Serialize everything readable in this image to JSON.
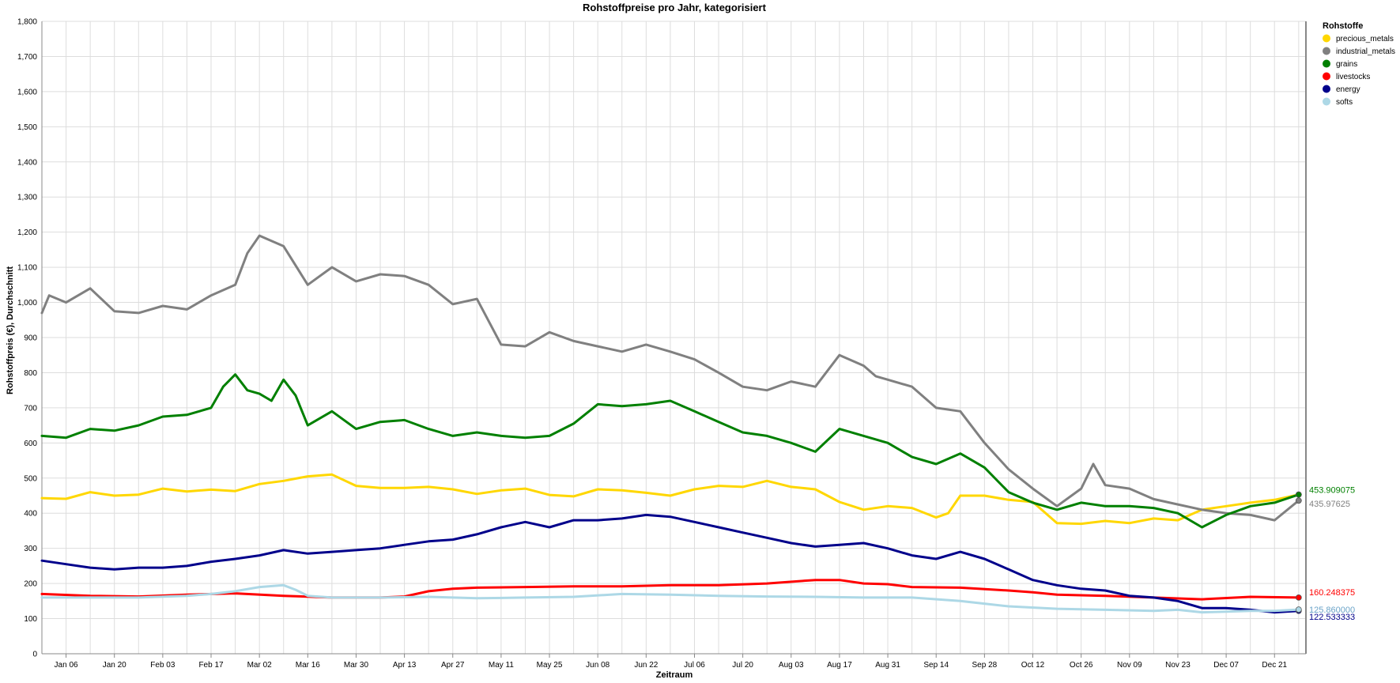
{
  "chart_data": {
    "type": "line",
    "title": "Rohstoffpreise pro Jahr, kategorisiert",
    "xlabel": "Zeitraum",
    "ylabel": "Rohstoffpreis (€), Durchschnitt",
    "ylim": [
      0,
      1800
    ],
    "yticks": [
      0,
      100,
      200,
      300,
      400,
      500,
      600,
      700,
      800,
      900,
      1000,
      1100,
      1200,
      1300,
      1400,
      1500,
      1600,
      1700,
      1800
    ],
    "ytick_labels": [
      "0",
      "100",
      "200",
      "300",
      "400",
      "500",
      "600",
      "700",
      "800",
      "900",
      "1,000",
      "1,100",
      "1,200",
      "1,300",
      "1,400",
      "1,500",
      "1,600",
      "1,700",
      "1,800"
    ],
    "xlim": [
      0,
      52.3
    ],
    "xticks": [
      1,
      3,
      5,
      7,
      9,
      11,
      13,
      15,
      17,
      19,
      21,
      23,
      25,
      27,
      29,
      31,
      33,
      35,
      37,
      39,
      41,
      43,
      45,
      47,
      49,
      51
    ],
    "xtick_labels": [
      "Jan 06",
      "Jan 20",
      "Feb 03",
      "Feb 17",
      "Mar 02",
      "Mar 16",
      "Mar 30",
      "Apr 13",
      "Apr 27",
      "May 11",
      "May 25",
      "Jun 08",
      "Jun 22",
      "Jul 06",
      "Jul 20",
      "Aug 03",
      "Aug 17",
      "Aug 31",
      "Sep 14",
      "Sep 28",
      "Oct 12",
      "Oct 26",
      "Nov 09",
      "Nov 23",
      "Dec 07",
      "Dec 21"
    ],
    "grid": true,
    "legend": {
      "title": "Rohstoffe",
      "placement": "right"
    },
    "colors": {
      "precious_metals": "#ffd700",
      "industrial_metals": "#808080",
      "grains": "#008000",
      "livestocks": "#ff0000",
      "energy": "#00008b",
      "softs": "#add8e6"
    },
    "series": [
      {
        "name": "precious_metals",
        "x": [
          0,
          0.5,
          1,
          2,
          3,
          4,
          5,
          6,
          7,
          8,
          9,
          10,
          11,
          12,
          13,
          14,
          15,
          16,
          17,
          18,
          19,
          20,
          21,
          22,
          23,
          24,
          25,
          26,
          27,
          28,
          29,
          30,
          31,
          32,
          33,
          34,
          35,
          36,
          37,
          37.5,
          38,
          39,
          40,
          41,
          42,
          43,
          44,
          45,
          46,
          47,
          48,
          49,
          50,
          51,
          52
        ],
        "values": [
          443,
          442,
          441,
          460,
          450,
          453,
          470,
          462,
          467,
          463,
          483,
          492,
          505,
          510,
          478,
          472,
          472,
          475,
          468,
          455,
          465,
          470,
          452,
          448,
          468,
          465,
          458,
          450,
          468,
          478,
          475,
          492,
          475,
          468,
          432,
          410,
          420,
          415,
          388,
          400,
          450,
          450,
          438,
          432,
          372,
          370,
          378,
          372,
          385,
          380,
          410,
          420,
          430,
          438,
          453
        ]
      },
      {
        "name": "industrial_metals",
        "x": [
          0,
          0.3,
          1,
          2,
          3,
          4,
          5,
          6,
          7,
          8,
          8.5,
          9,
          9.5,
          10,
          11,
          12,
          13,
          14,
          15,
          16,
          17,
          18,
          19,
          20,
          21,
          22,
          23,
          24,
          25,
          26,
          27,
          28,
          29,
          30,
          31,
          32,
          33,
          34,
          34.5,
          35,
          36,
          37,
          38,
          39,
          40,
          41,
          42,
          43,
          43.5,
          44,
          45,
          46,
          47,
          48,
          49,
          50,
          51,
          52
        ],
        "values": [
          970,
          1020,
          1000,
          1040,
          975,
          970,
          990,
          980,
          1020,
          1050,
          1140,
          1190,
          1175,
          1160,
          1050,
          1100,
          1060,
          1080,
          1075,
          1050,
          995,
          1010,
          880,
          875,
          915,
          890,
          875,
          860,
          880,
          860,
          838,
          800,
          760,
          750,
          775,
          760,
          850,
          820,
          790,
          780,
          760,
          700,
          690,
          600,
          525,
          470,
          420,
          470,
          540,
          480,
          470,
          440,
          425,
          410,
          400,
          395,
          380,
          436
        ]
      },
      {
        "name": "grains",
        "x": [
          0,
          1,
          2,
          3,
          4,
          5,
          6,
          7,
          7.5,
          8,
          8.5,
          9,
          9.5,
          10,
          10.5,
          11,
          12,
          13,
          14,
          15,
          16,
          17,
          18,
          19,
          20,
          21,
          22,
          23,
          24,
          25,
          26,
          27,
          28,
          29,
          30,
          31,
          32,
          33,
          34,
          35,
          36,
          37,
          38,
          39,
          40,
          41,
          42,
          43,
          44,
          45,
          46,
          47,
          48,
          49,
          50,
          51,
          52
        ],
        "values": [
          620,
          615,
          640,
          635,
          650,
          675,
          680,
          700,
          760,
          795,
          750,
          740,
          720,
          780,
          735,
          650,
          690,
          640,
          660,
          665,
          640,
          620,
          630,
          620,
          615,
          620,
          655,
          710,
          705,
          710,
          720,
          690,
          660,
          630,
          620,
          600,
          575,
          640,
          620,
          600,
          560,
          540,
          570,
          530,
          460,
          430,
          410,
          430,
          420,
          420,
          415,
          400,
          360,
          395,
          420,
          430,
          453
        ]
      },
      {
        "name": "livestocks",
        "x": [
          0,
          2,
          4,
          6,
          8,
          10,
          12,
          14,
          15,
          16,
          17,
          18,
          20,
          22,
          24,
          26,
          28,
          30,
          32,
          33,
          34,
          35,
          36,
          38,
          40,
          41,
          42,
          44,
          46,
          48,
          50,
          52
        ],
        "values": [
          170,
          165,
          163,
          168,
          172,
          165,
          160,
          160,
          163,
          178,
          185,
          188,
          190,
          192,
          192,
          195,
          195,
          200,
          210,
          210,
          200,
          198,
          190,
          188,
          180,
          175,
          168,
          165,
          160,
          155,
          162,
          160
        ]
      },
      {
        "name": "energy",
        "x": [
          0,
          1,
          2,
          3,
          4,
          5,
          6,
          7,
          8,
          9,
          10,
          11,
          12,
          13,
          14,
          15,
          16,
          17,
          18,
          19,
          20,
          21,
          22,
          23,
          24,
          25,
          26,
          27,
          28,
          29,
          30,
          31,
          32,
          33,
          34,
          35,
          36,
          37,
          38,
          39,
          40,
          41,
          42,
          43,
          44,
          45,
          46,
          47,
          48,
          49,
          50,
          51,
          52
        ],
        "values": [
          265,
          255,
          245,
          240,
          245,
          245,
          250,
          262,
          270,
          280,
          295,
          285,
          290,
          295,
          300,
          310,
          320,
          325,
          340,
          360,
          375,
          360,
          380,
          380,
          385,
          395,
          390,
          375,
          360,
          345,
          330,
          315,
          305,
          310,
          315,
          300,
          280,
          270,
          290,
          270,
          240,
          210,
          195,
          185,
          180,
          165,
          160,
          150,
          130,
          130,
          125,
          118,
          122
        ]
      },
      {
        "name": "softs",
        "x": [
          0,
          2,
          4,
          6,
          7,
          8,
          9,
          10,
          10.5,
          11,
          12,
          14,
          16,
          18,
          20,
          22,
          24,
          26,
          28,
          30,
          32,
          34,
          36,
          38,
          40,
          42,
          44,
          46,
          47,
          48,
          49,
          50,
          51,
          52
        ],
        "values": [
          160,
          160,
          160,
          165,
          170,
          178,
          190,
          195,
          182,
          165,
          160,
          160,
          162,
          158,
          160,
          162,
          170,
          168,
          165,
          163,
          162,
          160,
          160,
          150,
          135,
          128,
          125,
          122,
          125,
          118,
          120,
          122,
          122,
          125.8
        ]
      }
    ],
    "end_labels": {
      "grains": "453.909075",
      "industrial_metals": "435.97625",
      "livestocks": "160.248375",
      "energy": "122.533333",
      "softs": "125.860000"
    }
  }
}
